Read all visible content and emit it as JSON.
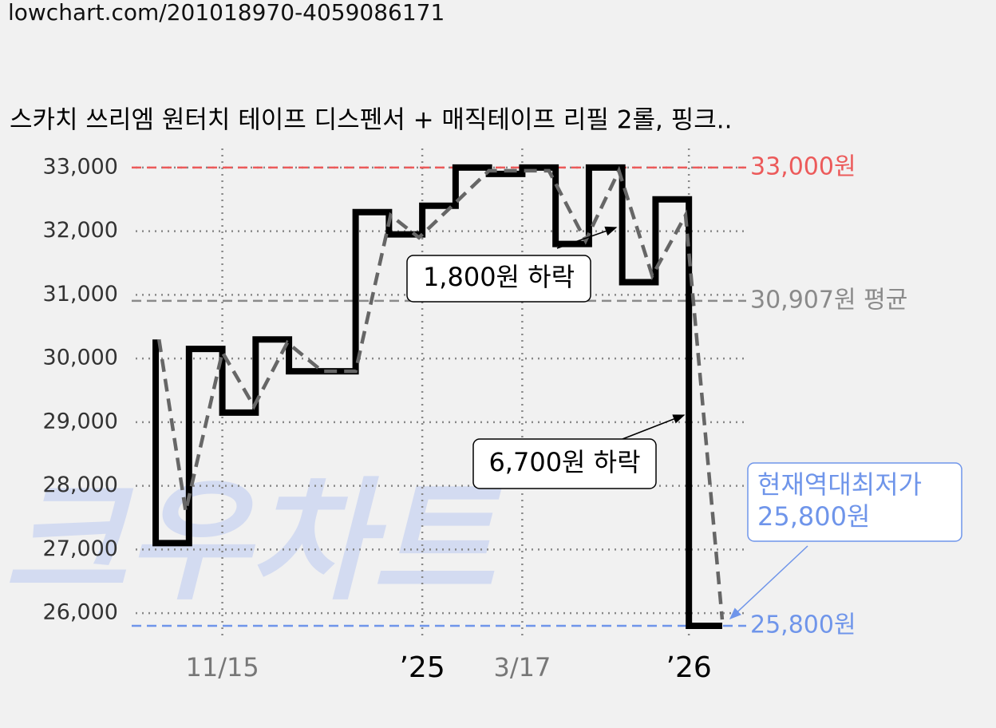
{
  "url": "lowchart.com/201018970-4059086171",
  "chart_data": {
    "type": "step",
    "title": "스카치 쓰리엠 원터치 테이프 디스펜서 + 매직테이프 리필 2롤, 핑크..",
    "watermark": "크우차트",
    "xlim": [
      -0.72,
      17.72
    ],
    "ylim": [
      25600,
      33300
    ],
    "xticks": [
      {
        "value": 2,
        "label": "11/15",
        "bold": false
      },
      {
        "value": 8,
        "label": "’25",
        "bold": true
      },
      {
        "value": 11,
        "label": "3/17",
        "bold": false
      },
      {
        "value": 16,
        "label": "’26",
        "bold": true
      }
    ],
    "yticks": [
      {
        "value": 26000,
        "label": "26,000"
      },
      {
        "value": 27000,
        "label": "27,000"
      },
      {
        "value": 28000,
        "label": "28,000"
      },
      {
        "value": 29000,
        "label": "29,000"
      },
      {
        "value": 30000,
        "label": "30,000"
      },
      {
        "value": 31000,
        "label": "31,000"
      },
      {
        "value": 32000,
        "label": "32,000"
      },
      {
        "value": 33000,
        "label": "33,000"
      }
    ],
    "grid": true,
    "series": [
      {
        "color": "#000000",
        "style": "step",
        "x": [
          0,
          0,
          1,
          2,
          3,
          4,
          6,
          7,
          8,
          9,
          10,
          11,
          12,
          13,
          14,
          15,
          16,
          17
        ],
        "values": [
          30300,
          27100,
          30150,
          29150,
          30300,
          29800,
          32300,
          31950,
          32400,
          33000,
          32900,
          33000,
          31800,
          33000,
          31200,
          32500,
          25800,
          25800
        ]
      },
      {
        "color": "#666666",
        "style": "dashed",
        "x": [
          0.1,
          0.9,
          2,
          2.95,
          3.95,
          5,
          6,
          7.05,
          7.9,
          8.9,
          10,
          11.8,
          12.9,
          13.9,
          14.9,
          15.9,
          17
        ],
        "values": [
          30300,
          27600,
          30100,
          29250,
          30250,
          29800,
          29800,
          32250,
          31900,
          32400,
          32950,
          32950,
          31850,
          32950,
          31300,
          32250,
          25900
        ]
      }
    ],
    "reference_lines": [
      {
        "value": 33000,
        "label": "33,000원",
        "color": "#ec5a5a"
      },
      {
        "value": 30907,
        "label": "30,907원 평균",
        "color": "#8a8a8a"
      },
      {
        "value": 25800,
        "label": "25,800원",
        "color": "#6f95ea"
      }
    ],
    "annotations": [
      {
        "lines": [
          "1,800원 하락"
        ],
        "color": "#000000"
      },
      {
        "lines": [
          "6,700원 하락"
        ],
        "color": "#000000"
      },
      {
        "lines": [
          "현재역대최저가",
          "25,800원"
        ],
        "color": "#6f95ea"
      }
    ]
  }
}
